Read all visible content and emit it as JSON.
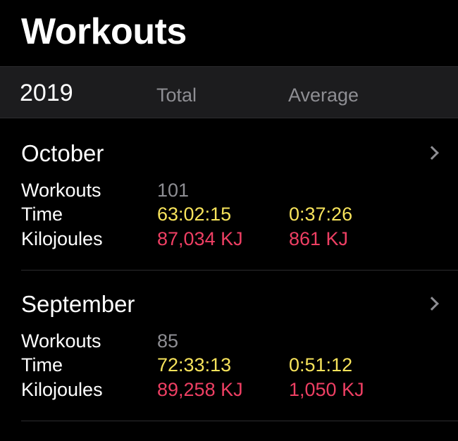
{
  "header": {
    "title": "Workouts"
  },
  "year_bar": {
    "year": "2019",
    "total_label": "Total",
    "average_label": "Average"
  },
  "months": [
    {
      "name": "October",
      "workouts_label": "Workouts",
      "workouts_total": "101",
      "time_label": "Time",
      "time_total": "63:02:15",
      "time_average": "0:37:26",
      "kj_label": "Kilojoules",
      "kj_total": "87,034 KJ",
      "kj_average": "861 KJ"
    },
    {
      "name": "September",
      "workouts_label": "Workouts",
      "workouts_total": "85",
      "time_label": "Time",
      "time_total": "72:33:13",
      "time_average": "0:51:12",
      "kj_label": "Kilojoules",
      "kj_total": "89,258 KJ",
      "kj_average": "1,050 KJ"
    }
  ],
  "colors": {
    "background": "#000000",
    "header_bar": "#1c1c1e",
    "secondary_text": "#8e8e93",
    "time_yellow": "#f7e35b",
    "energy_red": "#ee3f63"
  },
  "icons": {
    "disclosure": "chevron-right-icon"
  }
}
